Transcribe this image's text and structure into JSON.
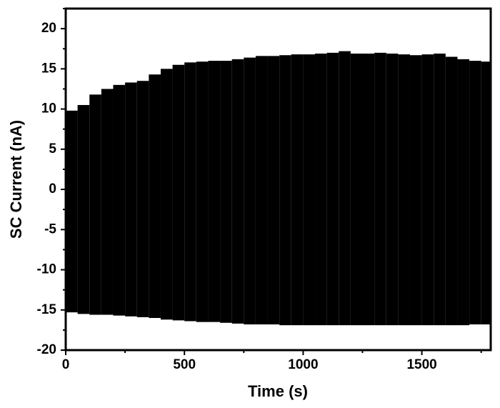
{
  "chart_data": {
    "type": "band",
    "x_label": "Time (s)",
    "y_label": "SC Current (nA)",
    "color": "#000000",
    "x": [
      0,
      50,
      100,
      150,
      200,
      250,
      300,
      350,
      400,
      450,
      500,
      550,
      600,
      650,
      700,
      750,
      800,
      850,
      900,
      950,
      1000,
      1050,
      1100,
      1150,
      1200,
      1250,
      1300,
      1350,
      1400,
      1450,
      1500,
      1550,
      1600,
      1650,
      1700,
      1750,
      1790
    ],
    "upper": [
      9.8,
      10.5,
      11.8,
      12.5,
      13.0,
      13.3,
      13.5,
      14.3,
      15.0,
      15.5,
      15.8,
      15.9,
      16.0,
      16.0,
      16.2,
      16.4,
      16.6,
      16.6,
      16.7,
      16.8,
      16.8,
      16.9,
      17.0,
      17.2,
      16.9,
      16.9,
      17.0,
      16.9,
      16.8,
      16.7,
      16.8,
      16.9,
      16.5,
      16.2,
      16.0,
      15.9,
      15.8
    ],
    "lower": [
      -15.3,
      -15.5,
      -15.6,
      -15.6,
      -15.7,
      -15.8,
      -15.9,
      -16.0,
      -16.2,
      -16.3,
      -16.4,
      -16.5,
      -16.5,
      -16.6,
      -16.7,
      -16.8,
      -16.8,
      -16.8,
      -16.9,
      -16.9,
      -16.9,
      -16.9,
      -16.9,
      -16.9,
      -16.9,
      -16.9,
      -16.9,
      -16.9,
      -16.9,
      -16.9,
      -16.9,
      -16.9,
      -16.9,
      -16.9,
      -16.8,
      -16.8,
      -16.8
    ],
    "xlim": [
      0,
      1790
    ],
    "ylim": [
      -20,
      22.5
    ],
    "xticks": [
      0,
      500,
      1000,
      1500
    ],
    "yticks": [
      -20,
      -15,
      -10,
      -5,
      0,
      5,
      10,
      15,
      20
    ],
    "xminorticks": [
      250,
      750,
      1250,
      1750
    ],
    "yminorticks": [
      -17.5,
      -12.5,
      -7.5,
      -2.5,
      2.5,
      7.5,
      12.5,
      17.5,
      22.5
    ]
  }
}
